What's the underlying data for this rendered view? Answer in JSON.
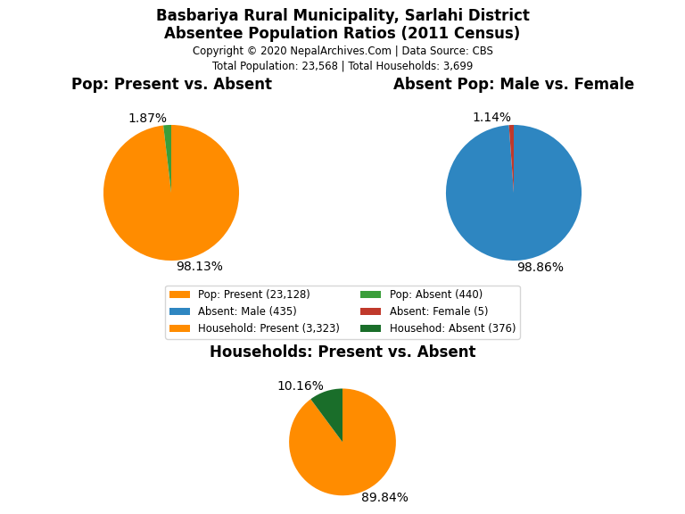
{
  "title": "Basbariya Rural Municipality, Sarlahi District",
  "subtitle": "Absentee Population Ratios (2011 Census)",
  "annotations": [
    "Copyright © 2020 NepalArchives.Com | Data Source: CBS",
    "Total Population: 23,568 | Total Households: 3,699"
  ],
  "legend": "upper center",
  "chart_data": [
    {
      "type": "pie",
      "title": "Pop: Present vs. Absent",
      "categories": [
        "Pop: Present (23,128)",
        "Pop: Absent (440)"
      ],
      "values": [
        98.13,
        1.87
      ],
      "value_labels": [
        "98.13%",
        "1.87%"
      ],
      "colors": [
        "#FF8C00",
        "#3A9E3A"
      ]
    },
    {
      "type": "pie",
      "title": "Absent Pop: Male vs. Female",
      "categories": [
        "Absent: Male (435)",
        "Absent: Female (5)"
      ],
      "values": [
        98.86,
        1.14
      ],
      "value_labels": [
        "98.86%",
        "1.14%"
      ],
      "colors": [
        "#2E86C1",
        "#C0392B"
      ]
    },
    {
      "type": "pie",
      "title": "Households: Present vs. Absent",
      "categories": [
        "Household: Present (3,323)",
        "Househod: Absent (376)"
      ],
      "values": [
        89.84,
        10.16
      ],
      "value_labels": [
        "89.84%",
        "10.16%"
      ],
      "colors": [
        "#FF8C00",
        "#1A6E2A"
      ]
    }
  ]
}
